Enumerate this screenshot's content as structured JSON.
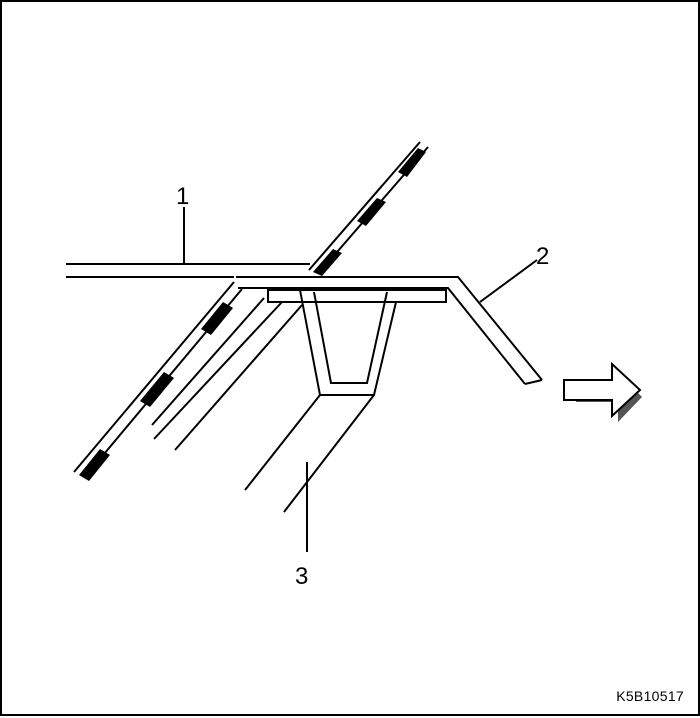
{
  "callouts": {
    "one": "1",
    "two": "2",
    "three": "3"
  },
  "figure_code": "K5B10517",
  "icons": {
    "direction_arrow": "arrow-right-icon"
  },
  "colors": {
    "line": "#000000",
    "background": "#ffffff",
    "arrow_shadow": "#555555"
  }
}
